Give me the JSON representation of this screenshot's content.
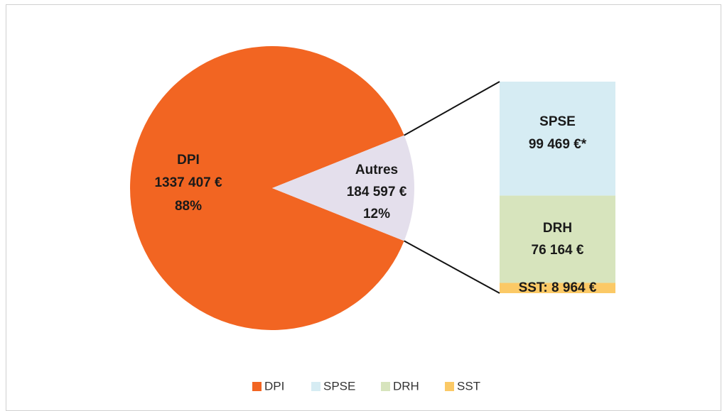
{
  "chart_data": {
    "type": "pie",
    "categories": [
      "DPI",
      "Autres"
    ],
    "values": [
      1337407,
      184597
    ],
    "value_labels": [
      "1337 407 €",
      "184 597 €"
    ],
    "percents": [
      88,
      12
    ],
    "percent_labels": [
      "88%",
      "12%"
    ],
    "colors": [
      "#f26522",
      "#e4dfec"
    ],
    "breakdown": {
      "categories": [
        "SPSE",
        "DRH",
        "SST"
      ],
      "values": [
        99469,
        76164,
        8964
      ],
      "value_labels": [
        "99 469 €*",
        "76 164 €",
        "SST: 8 964 €"
      ],
      "colors": [
        "#d6ecf3",
        "#d7e4bd",
        "#fbc966"
      ]
    }
  }
}
